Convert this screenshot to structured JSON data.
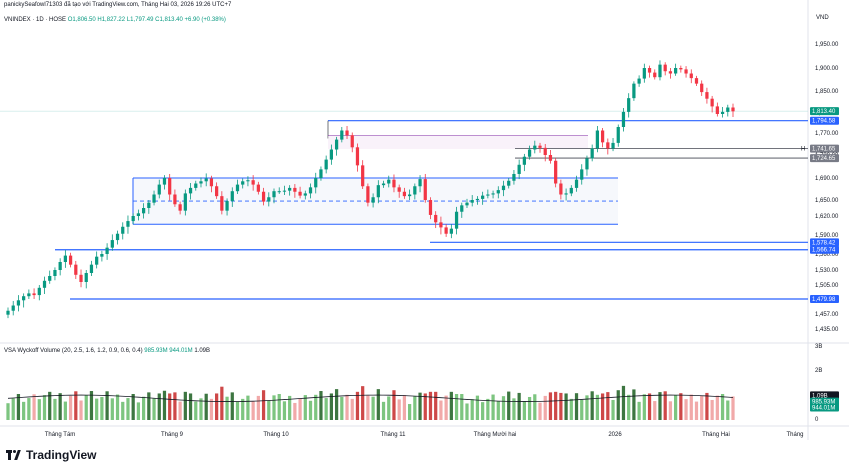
{
  "header": "panickySeafowl71303 đã tạo với TradingView.com, Tháng Hai 03, 2026 19:26 UTC+7",
  "legend": {
    "symbol": "VNINDEX · 1D · HOSE",
    "open": "O1,806.50",
    "high": "H1,827.22",
    "low": "L1,797.49",
    "close": "C1,813.40",
    "change": "+6.90 (+0.38%)"
  },
  "currency": "VND",
  "volume_legend": {
    "name": "VSA Wyckoff Volume",
    "params": "(20, 2.5, 1.6, 1.2, 0.9, 0.6, 0.4)",
    "v1": "985.93M",
    "v2": "944.01M",
    "v3": "1.09B"
  },
  "footer": "TradingView",
  "colors": {
    "up": "#089981",
    "down": "#f23645",
    "blue": "#2962ff",
    "dark": "#131722"
  },
  "chart_data": {
    "type": "candlestick",
    "ylim": [
      1435,
      1950
    ],
    "y_ticks": [
      "1,950.00",
      "1,900.00",
      "1,850.00",
      "1,810.00",
      "1,770.00",
      "1,730.00",
      "1,690.00",
      "1,650.00",
      "1,620.00",
      "1,590.00",
      "1,560.00",
      "1,530.00",
      "1,505.00",
      "1,480.00",
      "1,457.00",
      "1,435.00"
    ],
    "x_ticks": [
      "Tháng Tám",
      "Tháng 9",
      "Tháng 10",
      "Tháng 11",
      "Tháng Mười hai",
      "2026",
      "Tháng Hai",
      "Tháng"
    ],
    "price_tags": [
      {
        "label": "1,813.40",
        "value": 1813.4,
        "color": "#089981"
      },
      {
        "label": "1,794.58",
        "value": 1794.58,
        "color": "#2962ff"
      },
      {
        "label": "1,741.65",
        "value": 1741.65,
        "color": "#787b86"
      },
      {
        "label": "1,724.65",
        "value": 1724.65,
        "color": "#787b86"
      },
      {
        "label": "1,578.42",
        "value": 1578.42,
        "color": "#2962ff"
      },
      {
        "label": "1,566.74",
        "value": 1566.74,
        "color": "#2962ff"
      },
      {
        "label": "1,479.98",
        "value": 1479.98,
        "color": "#2962ff"
      }
    ],
    "h_marker": "H",
    "closes": [
      1462,
      1470,
      1478,
      1485,
      1490,
      1487,
      1500,
      1512,
      1520,
      1530,
      1545,
      1557,
      1540,
      1522,
      1510,
      1525,
      1540,
      1555,
      1560,
      1570,
      1582,
      1592,
      1603,
      1612,
      1620,
      1625,
      1635,
      1645,
      1660,
      1678,
      1690,
      1660,
      1642,
      1630,
      1662,
      1672,
      1680,
      1684,
      1689,
      1675,
      1657,
      1630,
      1648,
      1666,
      1678,
      1684,
      1686,
      1678,
      1665,
      1647,
      1655,
      1666,
      1666,
      1667,
      1672,
      1665,
      1658,
      1662,
      1673,
      1690,
      1705,
      1722,
      1740,
      1758,
      1775,
      1766,
      1744,
      1712,
      1675,
      1645,
      1655,
      1677,
      1680,
      1687,
      1673,
      1665,
      1657,
      1660,
      1675,
      1688,
      1650,
      1622,
      1610,
      1602,
      1592,
      1600,
      1628,
      1640,
      1645,
      1650,
      1652,
      1658,
      1660,
      1662,
      1668,
      1676,
      1685,
      1697,
      1713,
      1727,
      1740,
      1747,
      1743,
      1730,
      1720,
      1680,
      1660,
      1662,
      1672,
      1687,
      1705,
      1724,
      1742,
      1775,
      1753,
      1742,
      1752,
      1782,
      1812,
      1837,
      1866,
      1877,
      1900,
      1890,
      1880,
      1907,
      1893,
      1888,
      1900,
      1897,
      1888,
      1878,
      1866,
      1848,
      1836,
      1822,
      1808,
      1812,
      1820,
      1813
    ],
    "volume_ylim": [
      0,
      3
    ],
    "volume_ticks": [
      "3B",
      "2B",
      "1B",
      "0"
    ],
    "volume_tags": [
      {
        "label": "1.09B",
        "value": 1.09,
        "color": "#131722"
      },
      {
        "label": "985.93M",
        "value": 0.986,
        "color": "#089981"
      },
      {
        "label": "944.01M",
        "value": 0.944,
        "color": "#089981"
      }
    ]
  }
}
